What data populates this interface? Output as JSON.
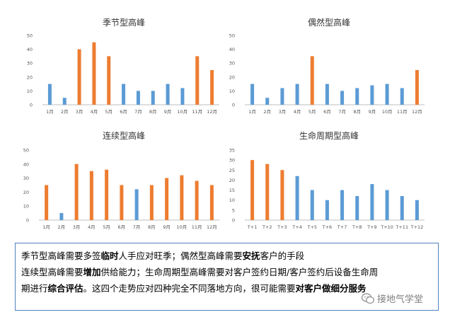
{
  "chart_data": [
    {
      "type": "bar",
      "title": "季节型高峰",
      "categories": [
        "1月",
        "2月",
        "3月",
        "4月",
        "5月",
        "6月",
        "7月",
        "8月",
        "9月",
        "10月",
        "11月",
        "12月"
      ],
      "values": [
        15,
        5,
        40,
        45,
        35,
        15,
        10,
        10,
        15,
        12,
        35,
        25
      ],
      "highlight": [
        false,
        false,
        true,
        true,
        true,
        false,
        false,
        false,
        false,
        false,
        true,
        true
      ],
      "yticks": [
        0,
        10,
        20,
        30,
        40,
        50
      ],
      "ylim": [
        0,
        50
      ]
    },
    {
      "type": "bar",
      "title": "偶然型高峰",
      "categories": [
        "1月",
        "2月",
        "3月",
        "4月",
        "5月",
        "6月",
        "7月",
        "8月",
        "9月",
        "10月",
        "11月",
        "12月"
      ],
      "values": [
        15,
        5,
        12,
        15,
        35,
        15,
        10,
        12,
        14,
        15,
        12,
        25
      ],
      "highlight": [
        false,
        false,
        false,
        false,
        true,
        false,
        false,
        false,
        false,
        false,
        false,
        true
      ],
      "yticks": [
        0,
        10,
        20,
        30,
        40,
        50
      ],
      "ylim": [
        0,
        50
      ]
    },
    {
      "type": "bar",
      "title": "连续型高峰",
      "categories": [
        "1月",
        "2月",
        "3月",
        "4月",
        "5月",
        "6月",
        "7月",
        "8月",
        "9月",
        "10月",
        "11月",
        "12月"
      ],
      "values": [
        25,
        5,
        40,
        35,
        36,
        25,
        22,
        25,
        30,
        32,
        28,
        25
      ],
      "highlight": [
        true,
        false,
        true,
        true,
        true,
        true,
        false,
        true,
        true,
        true,
        true,
        true
      ],
      "yticks": [
        0,
        10,
        20,
        30,
        40,
        50
      ],
      "ylim": [
        0,
        50
      ]
    },
    {
      "type": "bar",
      "title": "生命周期型高峰",
      "categories": [
        "T+1",
        "T+2",
        "T+3",
        "T+4",
        "T+5",
        "T+6",
        "T+7",
        "T+8",
        "T+9",
        "T+10",
        "T+11",
        "T+12"
      ],
      "values": [
        30,
        28,
        25,
        22,
        15,
        10,
        15,
        12,
        18,
        15,
        12,
        10
      ],
      "highlight": [
        true,
        true,
        true,
        false,
        false,
        false,
        false,
        false,
        false,
        false,
        false,
        false
      ],
      "yticks": [
        0,
        5,
        10,
        15,
        20,
        25,
        30,
        35
      ],
      "ylim": [
        0,
        35
      ]
    }
  ],
  "colors": {
    "orange": "#ED7D31",
    "blue": "#5B9BD5"
  },
  "note": {
    "line1": [
      {
        "text": "季节型高峰需要多签",
        "bold": false
      },
      {
        "text": "临时",
        "bold": true
      },
      {
        "text": "人手应对旺季；偶然型高峰需要",
        "bold": false
      },
      {
        "text": "安抚",
        "bold": true
      },
      {
        "text": "客户的手段",
        "bold": false
      }
    ],
    "line2": [
      {
        "text": "连续型高峰需要",
        "bold": false
      },
      {
        "text": "增加",
        "bold": true
      },
      {
        "text": "供给能力；生命周期型高峰需要对客户签约日期/客户签约后设备生命周",
        "bold": false
      }
    ],
    "line3": [
      {
        "text": "期进行",
        "bold": false
      },
      {
        "text": "综合评估",
        "bold": true
      },
      {
        "text": "。这四个走势应对四种完全不同落地方向，很可能需要",
        "bold": false
      },
      {
        "text": "对客户做细分服务",
        "bold": true
      }
    ]
  },
  "watermark": {
    "text": "接地气学堂",
    "icon": "wechat-icon"
  }
}
